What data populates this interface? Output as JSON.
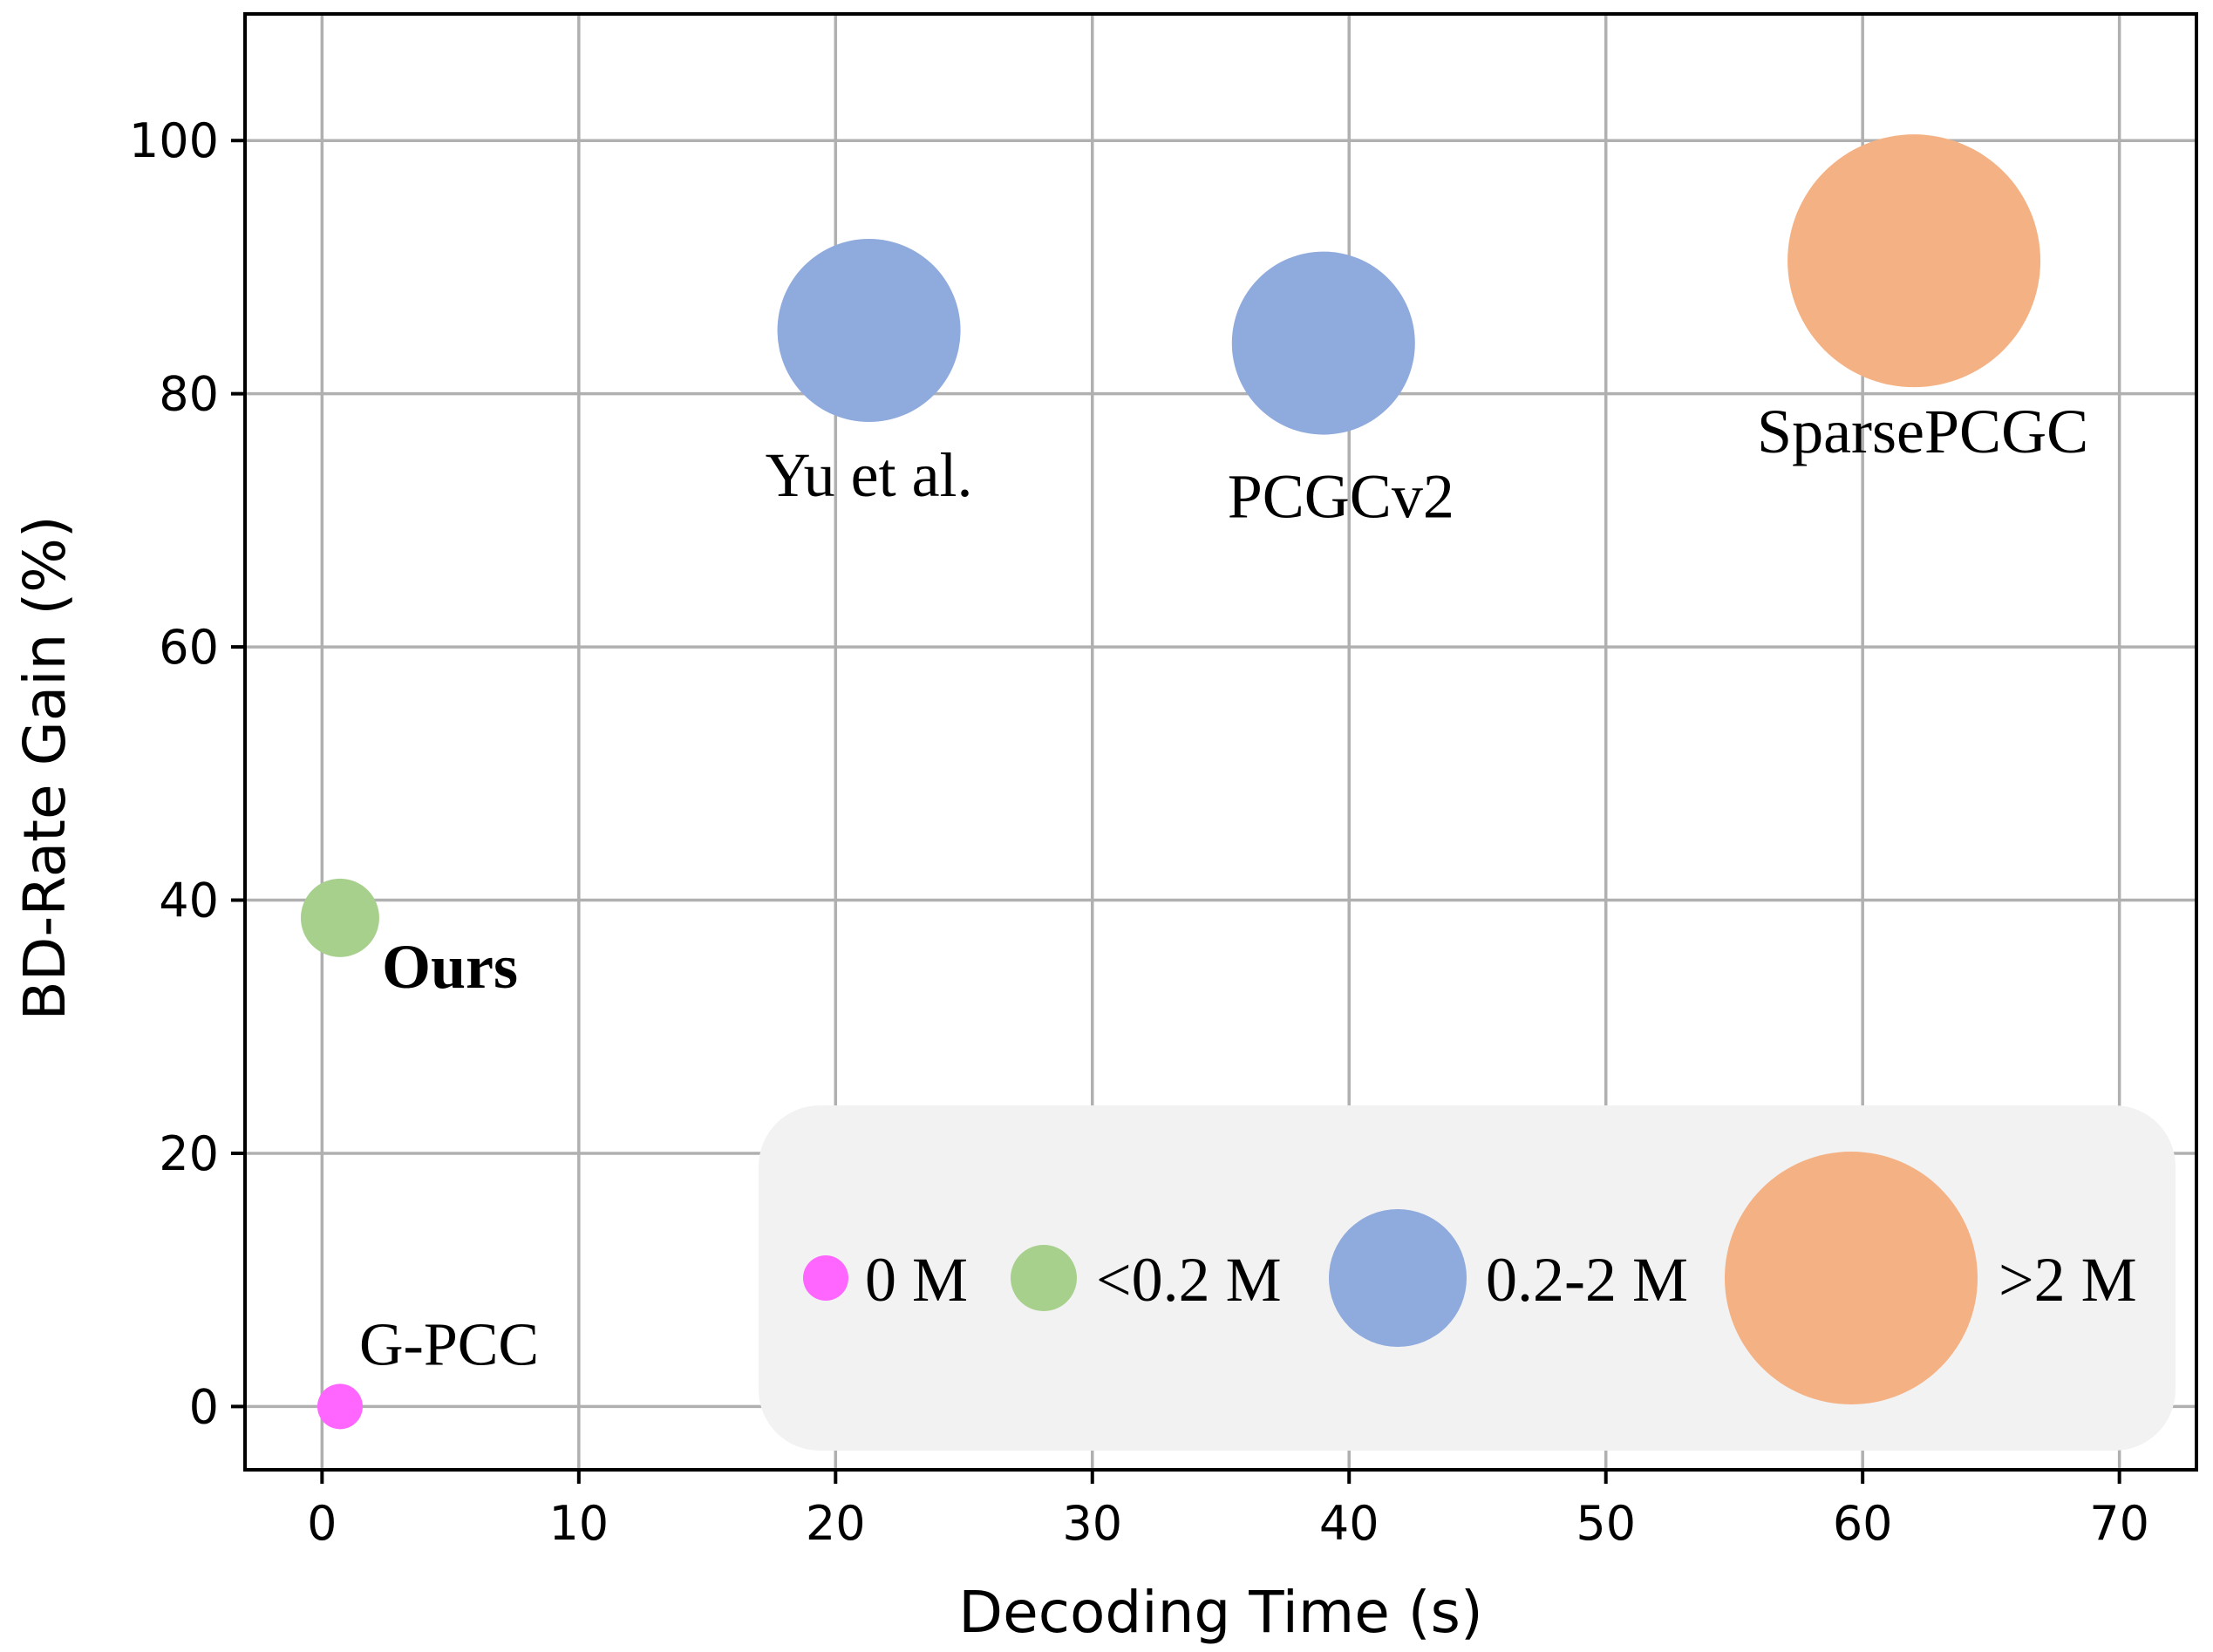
{
  "chart_data": {
    "type": "scatter",
    "subtype": "bubble",
    "xlabel": "Decoding Time (s)",
    "ylabel": "BD-Rate Gain (%)",
    "xlim": [
      -3,
      73
    ],
    "ylim": [
      -5,
      110
    ],
    "xticks": [
      0,
      10,
      20,
      30,
      40,
      50,
      60,
      70
    ],
    "yticks": [
      0,
      20,
      40,
      60,
      80,
      100
    ],
    "grid": true,
    "points": [
      {
        "name": "G-PCC",
        "x": 0.7,
        "y": 0.0,
        "size_class": "0 M",
        "color": "#ff66ff",
        "label_bold": false
      },
      {
        "name": "Ours",
        "x": 0.7,
        "y": 38.6,
        "size_class": "<0.2 M",
        "color": "#a8d08d",
        "label_bold": true
      },
      {
        "name": "Yu et al.",
        "x": 21.3,
        "y": 85.0,
        "size_class": "0.2-2 M",
        "color": "#8faadc",
        "label_bold": false
      },
      {
        "name": "PCGCv2",
        "x": 39.0,
        "y": 84.0,
        "size_class": "0.2-2 M",
        "color": "#8faadc",
        "label_bold": false
      },
      {
        "name": "SparsePCGC",
        "x": 62.0,
        "y": 90.5,
        "size_class": ">2 M",
        "color": "#f4b183",
        "label_bold": false
      }
    ],
    "legend": {
      "position": "bottom-right",
      "background": "#f2f2f2",
      "entries": [
        {
          "label": "0 M",
          "color": "#ff66ff"
        },
        {
          "label": "<0.2 M",
          "color": "#a8d08d"
        },
        {
          "label": "0.2-2 M",
          "color": "#8faadc"
        },
        {
          "label": ">2 M",
          "color": "#f4b183"
        }
      ]
    }
  }
}
